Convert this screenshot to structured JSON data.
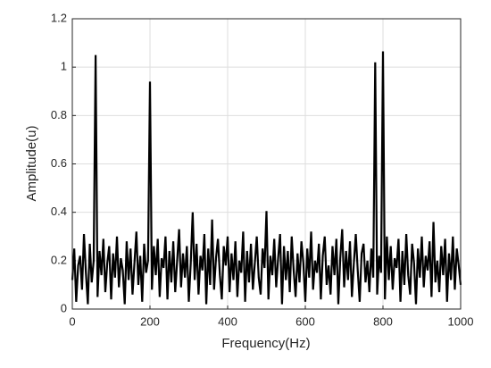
{
  "chart_data": {
    "type": "line",
    "xlabel": "Frequency(Hz)",
    "ylabel": "Amplitude(u)",
    "xlim": [
      0,
      1000
    ],
    "xticks": [
      0,
      200,
      400,
      600,
      800,
      1000
    ],
    "ylim": [
      0,
      1.2
    ],
    "yticks": [
      0,
      0.2,
      0.4,
      0.6,
      0.8,
      1,
      1.2
    ],
    "grid": true,
    "color": "#000000",
    "x": [
      0,
      5,
      10,
      15,
      20,
      25,
      30,
      35,
      40,
      45,
      50,
      55,
      60,
      65,
      70,
      75,
      80,
      85,
      90,
      95,
      100,
      105,
      110,
      115,
      120,
      125,
      130,
      135,
      140,
      145,
      150,
      155,
      160,
      165,
      170,
      175,
      180,
      185,
      190,
      195,
      200,
      205,
      210,
      215,
      220,
      225,
      230,
      235,
      240,
      245,
      250,
      255,
      260,
      265,
      270,
      275,
      280,
      285,
      290,
      295,
      300,
      305,
      310,
      315,
      320,
      325,
      330,
      335,
      340,
      345,
      350,
      355,
      360,
      365,
      370,
      375,
      380,
      385,
      390,
      395,
      400,
      405,
      410,
      415,
      420,
      425,
      430,
      435,
      440,
      445,
      450,
      455,
      460,
      465,
      470,
      475,
      480,
      485,
      490,
      495,
      500,
      505,
      510,
      515,
      520,
      525,
      530,
      535,
      540,
      545,
      550,
      555,
      560,
      565,
      570,
      575,
      580,
      585,
      590,
      595,
      600,
      605,
      610,
      615,
      620,
      625,
      630,
      635,
      640,
      645,
      650,
      655,
      660,
      665,
      670,
      675,
      680,
      685,
      690,
      695,
      700,
      705,
      710,
      715,
      720,
      725,
      730,
      735,
      740,
      745,
      750,
      755,
      760,
      765,
      770,
      775,
      780,
      785,
      790,
      795,
      800,
      805,
      810,
      815,
      820,
      825,
      830,
      835,
      840,
      845,
      850,
      855,
      860,
      865,
      870,
      875,
      880,
      885,
      890,
      895,
      900,
      905,
      910,
      915,
      920,
      925,
      930,
      935,
      940,
      945,
      950,
      955,
      960,
      965,
      970,
      975,
      980,
      985,
      990,
      995,
      1000
    ],
    "values": [
      0.12,
      0.25,
      0.03,
      0.18,
      0.22,
      0.08,
      0.31,
      0.15,
      0.02,
      0.27,
      0.11,
      0.2,
      1.05,
      0.05,
      0.24,
      0.14,
      0.29,
      0.07,
      0.19,
      0.26,
      0.04,
      0.23,
      0.13,
      0.3,
      0.09,
      0.21,
      0.16,
      0.02,
      0.28,
      0.12,
      0.25,
      0.06,
      0.19,
      0.32,
      0.1,
      0.22,
      0.03,
      0.27,
      0.15,
      0.2,
      0.94,
      0.08,
      0.26,
      0.14,
      0.29,
      0.05,
      0.21,
      0.17,
      0.3,
      0.04,
      0.24,
      0.11,
      0.28,
      0.07,
      0.2,
      0.33,
      0.09,
      0.23,
      0.13,
      0.26,
      0.03,
      0.19,
      0.4,
      0.12,
      0.27,
      0.06,
      0.22,
      0.16,
      0.31,
      0.02,
      0.25,
      0.1,
      0.37,
      0.08,
      0.21,
      0.29,
      0.14,
      0.04,
      0.26,
      0.18,
      0.3,
      0.07,
      0.23,
      0.12,
      0.28,
      0.05,
      0.2,
      0.15,
      0.32,
      0.03,
      0.24,
      0.11,
      0.27,
      0.08,
      0.19,
      0.3,
      0.13,
      0.06,
      0.25,
      0.17,
      0.405,
      0.04,
      0.22,
      0.14,
      0.29,
      0.09,
      0.21,
      0.31,
      0.02,
      0.26,
      0.12,
      0.24,
      0.07,
      0.3,
      0.16,
      0.05,
      0.23,
      0.11,
      0.28,
      0.19,
      0.03,
      0.25,
      0.13,
      0.32,
      0.08,
      0.2,
      0.15,
      0.27,
      0.04,
      0.22,
      0.3,
      0.1,
      0.18,
      0.06,
      0.26,
      0.14,
      0.29,
      0.02,
      0.21,
      0.33,
      0.09,
      0.24,
      0.12,
      0.28,
      0.05,
      0.19,
      0.31,
      0.16,
      0.03,
      0.23,
      0.27,
      0.11,
      0.2,
      0.07,
      0.25,
      0.13,
      1.02,
      0.06,
      0.22,
      0.15,
      1.065,
      0.04,
      0.3,
      0.12,
      0.26,
      0.08,
      0.21,
      0.17,
      0.29,
      0.03,
      0.24,
      0.1,
      0.31,
      0.14,
      0.06,
      0.27,
      0.19,
      0.02,
      0.25,
      0.13,
      0.3,
      0.09,
      0.22,
      0.16,
      0.28,
      0.05,
      0.36,
      0.11,
      0.2,
      0.07,
      0.26,
      0.14,
      0.29,
      0.03,
      0.23,
      0.12,
      0.3,
      0.08,
      0.25,
      0.18,
      0.1
    ]
  }
}
